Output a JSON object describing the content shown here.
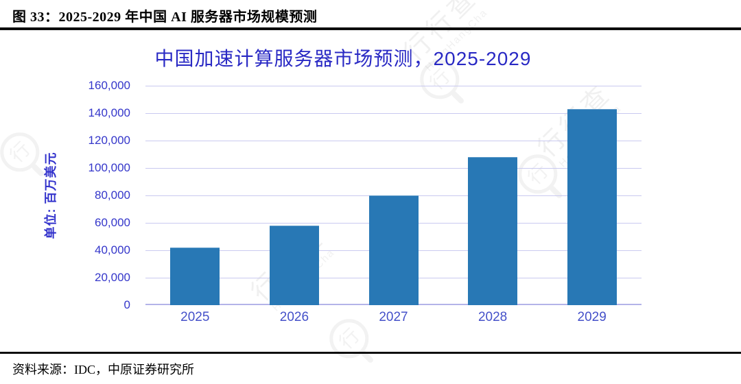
{
  "header": {
    "title": "图 33：2025-2029 年中国 AI 服务器市场规模预测"
  },
  "chart": {
    "y_axis_unit": "单位: 百万美元",
    "title_color": "#2929c4",
    "tick_color": "#3436ca",
    "xlabel_color": "#4450c9",
    "gridline_color": "#c9c9f0"
  },
  "chart_data": {
    "type": "bar",
    "title": "中国加速计算服务器市场预测，2025-2029",
    "categories": [
      "2025",
      "2026",
      "2027",
      "2028",
      "2029"
    ],
    "values": [
      41500,
      57300,
      79500,
      107300,
      142600
    ],
    "xlabel": "",
    "ylabel": "单位: 百万美元",
    "ylim": [
      0,
      160000
    ],
    "ytick_step": 20000,
    "grid": true,
    "legend": false,
    "bar_color": "#2878b5"
  },
  "footer": {
    "source": "资料来源：IDC，中原证券研究所"
  },
  "watermark": {
    "text": "行行查",
    "subtext": "HangHangCha",
    "logo_char": "行"
  }
}
